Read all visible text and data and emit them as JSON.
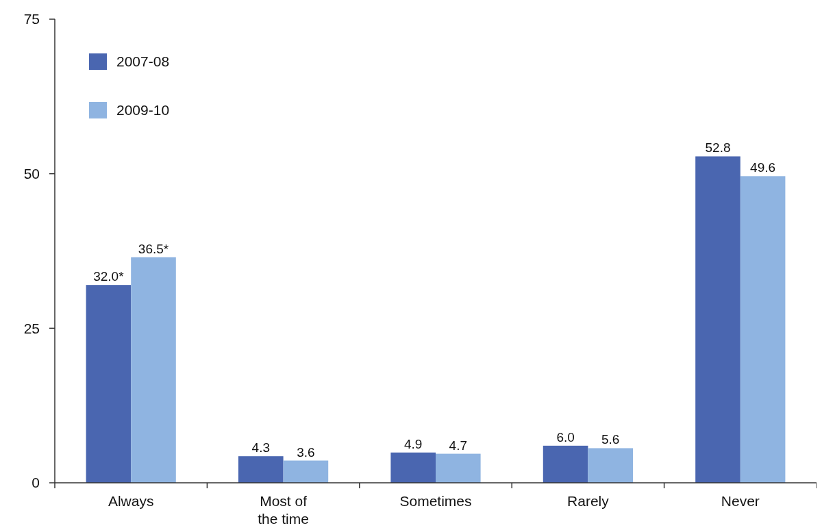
{
  "chart_data": {
    "type": "bar",
    "categories": [
      "Always",
      "Most of the time",
      "Sometimes",
      "Rarely",
      "Never"
    ],
    "series": [
      {
        "name": "2007-08",
        "color": "#4a66b0",
        "values": [
          32.0,
          4.3,
          4.9,
          6.0,
          52.8
        ],
        "value_labels": [
          "32.0*",
          "4.3",
          "4.9",
          "6.0",
          "52.8"
        ]
      },
      {
        "name": "2009-10",
        "color": "#8fb4e1",
        "values": [
          36.5,
          3.6,
          4.7,
          5.6,
          49.6
        ],
        "value_labels": [
          "36.5*",
          "3.6",
          "4.7",
          "5.6",
          "49.6"
        ]
      }
    ],
    "ylim": [
      0,
      75
    ],
    "yticks": [
      0,
      25,
      50,
      75
    ],
    "grid": false,
    "legend": "top left"
  }
}
